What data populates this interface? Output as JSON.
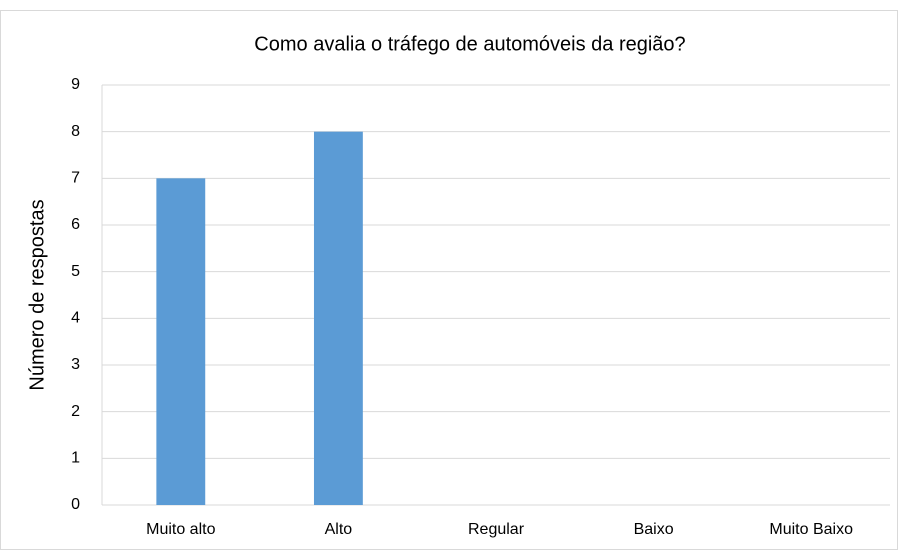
{
  "chart_data": {
    "type": "bar",
    "title": "Como avalia o tráfego de automóveis da região?",
    "y_label": "Número de respostas",
    "categories": [
      "Muito alto",
      "Alto",
      "Regular",
      "Baixo",
      "Muito Baixo"
    ],
    "values": [
      7,
      8,
      0,
      0,
      0
    ],
    "color": "#5b9bd5",
    "ylim": [
      0,
      9
    ],
    "yticks": [
      0,
      1,
      2,
      3,
      4,
      5,
      6,
      7,
      8,
      9
    ],
    "grid": true
  }
}
